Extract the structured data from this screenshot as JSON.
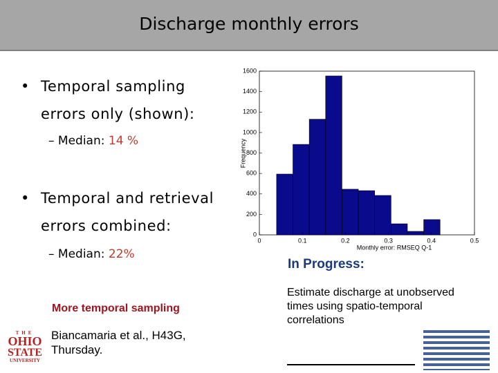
{
  "header": {
    "title": "Discharge monthly errors"
  },
  "bullets": [
    {
      "text": "Temporal sampling errors only (shown):",
      "sub": {
        "label": "Median:",
        "value": "14 %"
      }
    },
    {
      "text": "Temporal and retrieval errors combined:",
      "sub": {
        "label": "Median:",
        "value": "22%"
      }
    }
  ],
  "note": {
    "highlight": "More temporal sampling",
    "reference": "Biancamaria et al., H43G, Thursday."
  },
  "progress": {
    "heading": "In Progress:",
    "text": "Estimate discharge at unobserved times using spatio-temporal correlations"
  },
  "logo": {
    "top": "THE",
    "line1": "OHIO",
    "line2": "STATE",
    "line3": "UNIVERSITY"
  },
  "chart_data": {
    "type": "histogram",
    "xlabel": "Monthly error: RMSEQ Q-1",
    "ylabel": "Frequency",
    "bins": [
      0.04,
      0.078,
      0.116,
      0.154,
      0.192,
      0.23,
      0.268,
      0.306,
      0.344,
      0.382,
      0.42
    ],
    "values": [
      594,
      884,
      1130,
      1553,
      446,
      432,
      385,
      108,
      34,
      149
    ],
    "color": "#0a0a8c",
    "xlim": [
      0,
      0.5
    ],
    "xticks": [
      0,
      0.1,
      0.2,
      0.3,
      0.4,
      0.5
    ],
    "ylim": [
      0,
      1600
    ],
    "yticks": [
      0,
      200,
      400,
      600,
      800,
      1000,
      1200,
      1400,
      1600
    ]
  }
}
